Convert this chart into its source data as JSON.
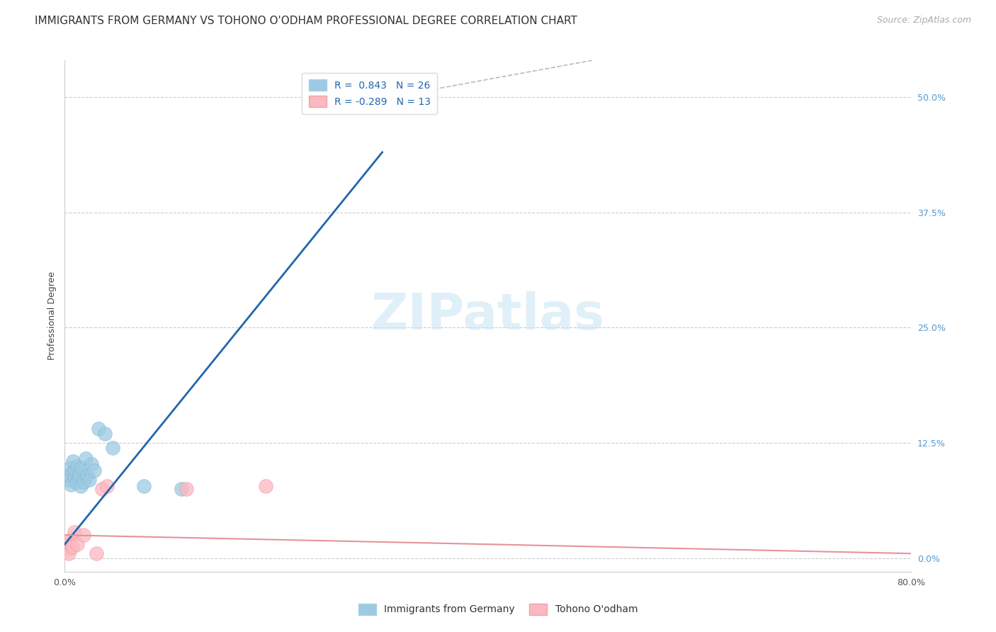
{
  "title": "IMMIGRANTS FROM GERMANY VS TOHONO O'ODHAM PROFESSIONAL DEGREE CORRELATION CHART",
  "source": "Source: ZipAtlas.com",
  "ylabel": "Professional Degree",
  "ytick_values": [
    0.0,
    12.5,
    25.0,
    37.5,
    50.0
  ],
  "xlim": [
    0.0,
    80.0
  ],
  "ylim": [
    -1.5,
    54.0
  ],
  "watermark_text": "ZIPatlas",
  "legend_blue_label": "R =  0.843   N = 26",
  "legend_pink_label": "R = -0.289   N = 13",
  "legend_blue_bottom": "Immigrants from Germany",
  "legend_pink_bottom": "Tohono O'odham",
  "blue_color": "#9ecae1",
  "pink_color": "#fcb8c0",
  "blue_line_color": "#2166ac",
  "pink_line_color": "#e8919a",
  "scatter_blue": [
    [
      0.3,
      9.0
    ],
    [
      0.4,
      8.5
    ],
    [
      0.5,
      9.8
    ],
    [
      0.6,
      8.0
    ],
    [
      0.7,
      9.3
    ],
    [
      0.8,
      10.5
    ],
    [
      0.9,
      8.8
    ],
    [
      1.0,
      9.5
    ],
    [
      1.1,
      8.2
    ],
    [
      1.2,
      10.0
    ],
    [
      1.3,
      8.9
    ],
    [
      1.4,
      9.2
    ],
    [
      1.5,
      7.8
    ],
    [
      1.6,
      9.8
    ],
    [
      1.8,
      8.3
    ],
    [
      2.0,
      10.8
    ],
    [
      2.1,
      9.0
    ],
    [
      2.3,
      8.5
    ],
    [
      2.5,
      10.2
    ],
    [
      2.8,
      9.5
    ],
    [
      3.2,
      14.0
    ],
    [
      3.8,
      13.5
    ],
    [
      4.5,
      12.0
    ],
    [
      7.5,
      7.8
    ],
    [
      11.0,
      7.5
    ],
    [
      28.5,
      49.5
    ]
  ],
  "scatter_pink": [
    [
      0.2,
      1.5
    ],
    [
      0.3,
      1.0
    ],
    [
      0.4,
      0.5
    ],
    [
      0.5,
      2.0
    ],
    [
      0.7,
      1.2
    ],
    [
      0.9,
      2.8
    ],
    [
      1.2,
      1.5
    ],
    [
      1.8,
      2.5
    ],
    [
      3.0,
      0.5
    ],
    [
      11.5,
      7.5
    ],
    [
      19.0,
      7.8
    ],
    [
      3.5,
      7.5
    ],
    [
      4.0,
      7.8
    ]
  ],
  "blue_line_x": [
    0.0,
    30.0
  ],
  "blue_line_y": [
    1.5,
    44.0
  ],
  "pink_line_x": [
    0.0,
    80.0
  ],
  "pink_line_y": [
    2.5,
    0.5
  ],
  "diag_line_x": [
    28.5,
    50.0
  ],
  "diag_line_y": [
    49.5,
    54.0
  ],
  "title_fontsize": 11,
  "source_fontsize": 9,
  "axis_label_fontsize": 9,
  "tick_fontsize": 9,
  "legend_fontsize": 10,
  "watermark_fontsize": 52
}
